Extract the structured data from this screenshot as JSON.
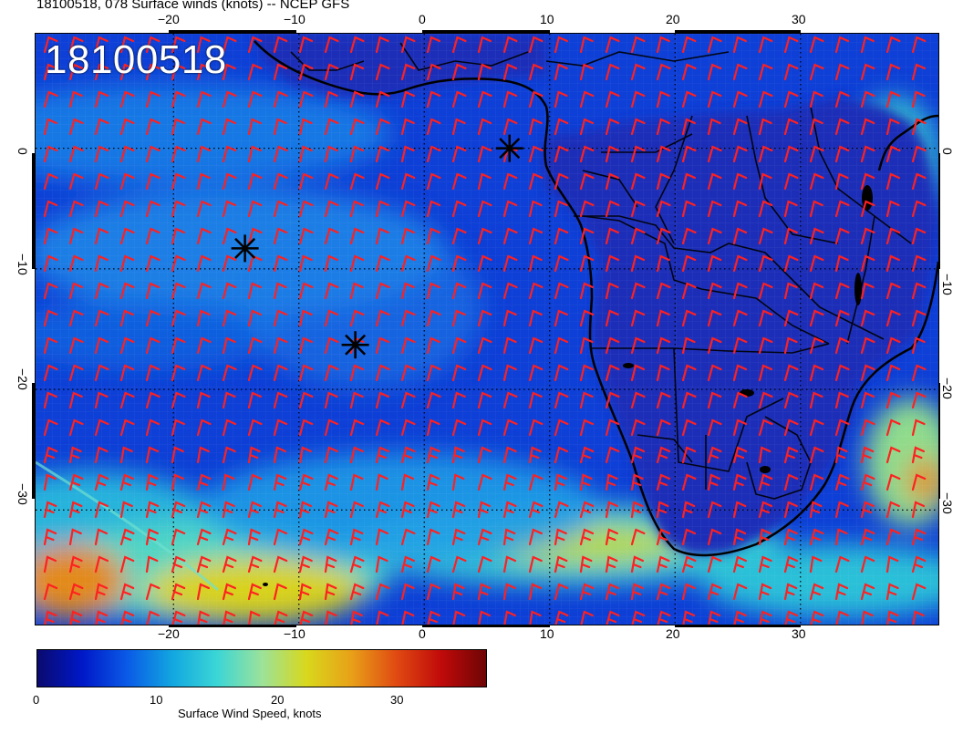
{
  "header": {
    "title": "18100518, 078 Surface winds (knots) -- NCEP GFS"
  },
  "map": {
    "date_stamp": "18100518",
    "lon_range": [
      -31,
      41
    ],
    "lat_range": [
      -39.5,
      9.5
    ],
    "lon_ticks_top": [
      "−20",
      "−10",
      "0",
      "10",
      "20",
      "30"
    ],
    "lon_ticks_bottom": [
      "−20",
      "−10",
      "0",
      "10",
      "20",
      "30"
    ],
    "lat_ticks_left": [
      "0",
      "−10",
      "−20",
      "−30"
    ],
    "lat_ticks_right": [
      "0",
      "−10",
      "−20",
      "−30"
    ],
    "tick_values_lon": [
      -20,
      -10,
      0,
      10,
      20,
      30
    ],
    "tick_values_lat": [
      0,
      -10,
      -20,
      -30
    ],
    "markers": [
      {
        "lon": 6.8,
        "lat": 0.0
      },
      {
        "lon": -14.3,
        "lat": -8.3
      },
      {
        "lon": -5.5,
        "lat": -16.3
      }
    ],
    "barb_color": "#ff2020",
    "land_outline_color": "#000000"
  },
  "colorbar": {
    "label": "Surface Wind Speed, knots",
    "tick_labels": [
      "0",
      "10",
      "20",
      "30"
    ],
    "tick_values": [
      0,
      10,
      20,
      30
    ],
    "max_value": 37,
    "colors": [
      "#0a0a6e",
      "#0018c8",
      "#0a5ae6",
      "#12a6e0",
      "#3ad6d6",
      "#9be29a",
      "#d8d81c",
      "#e8a018",
      "#e04a12",
      "#c00a0a",
      "#6e0505"
    ]
  }
}
